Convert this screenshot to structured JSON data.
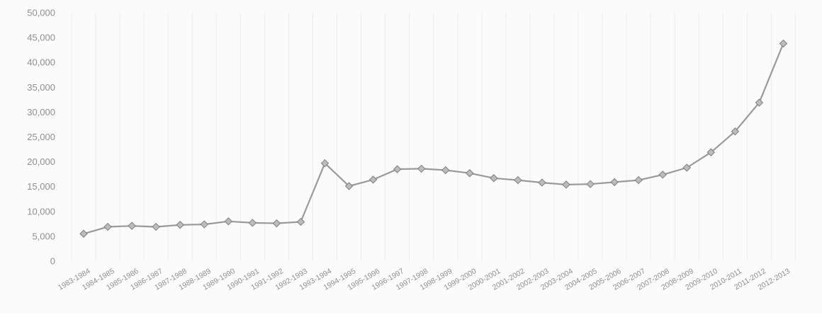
{
  "chart_data": {
    "type": "line",
    "title": "",
    "xlabel": "",
    "ylabel": "",
    "ylim": [
      0,
      50000
    ],
    "y_ticks": [
      "0",
      "5,000",
      "10,000",
      "15,000",
      "20,000",
      "25,000",
      "30,000",
      "35,000",
      "40,000",
      "45,000",
      "50,000"
    ],
    "grid": "vertical",
    "legend": "none",
    "colors": {
      "line": "#9a9a9a",
      "marker": "#bcbcbc",
      "text": "#8f8f8f",
      "grid": "#ededed"
    },
    "categories": [
      "1983-1984",
      "1984-1985",
      "1985-1986",
      "1986-1987",
      "1987-1988",
      "1988-1989",
      "1989-1990",
      "1990-1991",
      "1991-1992",
      "1992-1993",
      "1993-1994",
      "1994-1995",
      "1995-1996",
      "1996-1997",
      "1997-1998",
      "1998-1999",
      "1999-2000",
      "2000-2001",
      "2001-2002",
      "2002-2003",
      "2003-2004",
      "2004-2005",
      "2005-2006",
      "2006-2007",
      "2007-2008",
      "2008-2009",
      "2009-2010",
      "2010-2011",
      "2011-2012",
      "2012-2013"
    ],
    "series": [
      {
        "values": [
          5500,
          6900,
          7100,
          6900,
          7300,
          7400,
          8000,
          7700,
          7600,
          7900,
          19700,
          15100,
          16400,
          18500,
          18600,
          18300,
          17700,
          16700,
          16300,
          15800,
          15400,
          15500,
          15900,
          16300,
          17400,
          18800,
          21900,
          26100,
          31900,
          43800
        ]
      }
    ]
  }
}
